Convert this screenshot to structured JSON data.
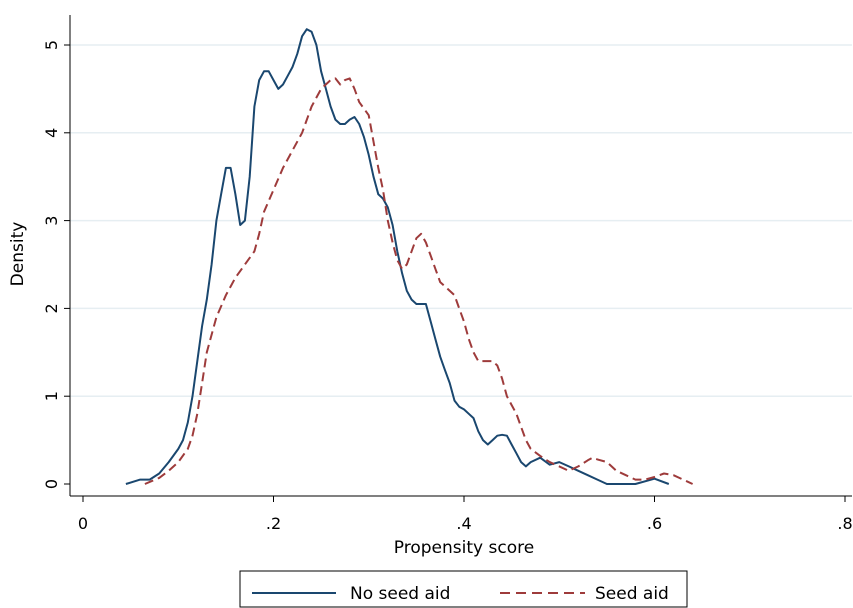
{
  "chart_data": {
    "type": "line",
    "xlabel": "Propensity score",
    "ylabel": "Density",
    "xlim": [
      0,
      0.8
    ],
    "ylim": [
      0,
      5.2
    ],
    "x_ticks": [
      0,
      0.2,
      0.4,
      0.6,
      0.8
    ],
    "x_tick_labels": [
      "0",
      ".2",
      ".4",
      ".6",
      ".8"
    ],
    "y_ticks": [
      0,
      1,
      2,
      3,
      4,
      5
    ],
    "y_tick_labels": [
      "0",
      "1",
      "2",
      "3",
      "4",
      "5"
    ],
    "grid": "horizontal",
    "legend_position": "bottom",
    "series": [
      {
        "name": "No seed aid",
        "color": "#1a476f",
        "dash": "solid",
        "points": [
          [
            0.045,
            0.0
          ],
          [
            0.06,
            0.05
          ],
          [
            0.07,
            0.05
          ],
          [
            0.08,
            0.12
          ],
          [
            0.09,
            0.25
          ],
          [
            0.1,
            0.4
          ],
          [
            0.105,
            0.5
          ],
          [
            0.11,
            0.7
          ],
          [
            0.115,
            1.0
          ],
          [
            0.12,
            1.4
          ],
          [
            0.125,
            1.8
          ],
          [
            0.13,
            2.1
          ],
          [
            0.135,
            2.5
          ],
          [
            0.14,
            3.0
          ],
          [
            0.145,
            3.3
          ],
          [
            0.15,
            3.6
          ],
          [
            0.155,
            3.6
          ],
          [
            0.16,
            3.3
          ],
          [
            0.165,
            2.95
          ],
          [
            0.17,
            3.0
          ],
          [
            0.175,
            3.5
          ],
          [
            0.18,
            4.3
          ],
          [
            0.185,
            4.6
          ],
          [
            0.19,
            4.7
          ],
          [
            0.195,
            4.7
          ],
          [
            0.2,
            4.6
          ],
          [
            0.205,
            4.5
          ],
          [
            0.21,
            4.55
          ],
          [
            0.215,
            4.65
          ],
          [
            0.22,
            4.75
          ],
          [
            0.225,
            4.9
          ],
          [
            0.23,
            5.1
          ],
          [
            0.235,
            5.18
          ],
          [
            0.24,
            5.15
          ],
          [
            0.245,
            5.0
          ],
          [
            0.25,
            4.7
          ],
          [
            0.255,
            4.5
          ],
          [
            0.26,
            4.3
          ],
          [
            0.265,
            4.15
          ],
          [
            0.27,
            4.1
          ],
          [
            0.275,
            4.1
          ],
          [
            0.28,
            4.15
          ],
          [
            0.285,
            4.18
          ],
          [
            0.29,
            4.1
          ],
          [
            0.295,
            3.95
          ],
          [
            0.3,
            3.75
          ],
          [
            0.305,
            3.5
          ],
          [
            0.31,
            3.3
          ],
          [
            0.315,
            3.25
          ],
          [
            0.32,
            3.15
          ],
          [
            0.325,
            2.95
          ],
          [
            0.33,
            2.65
          ],
          [
            0.335,
            2.4
          ],
          [
            0.34,
            2.2
          ],
          [
            0.345,
            2.1
          ],
          [
            0.35,
            2.05
          ],
          [
            0.36,
            2.05
          ],
          [
            0.365,
            1.85
          ],
          [
            0.37,
            1.65
          ],
          [
            0.375,
            1.45
          ],
          [
            0.38,
            1.3
          ],
          [
            0.385,
            1.15
          ],
          [
            0.39,
            0.95
          ],
          [
            0.395,
            0.88
          ],
          [
            0.4,
            0.85
          ],
          [
            0.405,
            0.8
          ],
          [
            0.41,
            0.75
          ],
          [
            0.415,
            0.6
          ],
          [
            0.42,
            0.5
          ],
          [
            0.425,
            0.45
          ],
          [
            0.43,
            0.5
          ],
          [
            0.435,
            0.55
          ],
          [
            0.44,
            0.56
          ],
          [
            0.445,
            0.55
          ],
          [
            0.45,
            0.45
          ],
          [
            0.455,
            0.35
          ],
          [
            0.46,
            0.25
          ],
          [
            0.465,
            0.2
          ],
          [
            0.47,
            0.25
          ],
          [
            0.48,
            0.3
          ],
          [
            0.49,
            0.22
          ],
          [
            0.5,
            0.25
          ],
          [
            0.51,
            0.2
          ],
          [
            0.52,
            0.15
          ],
          [
            0.53,
            0.1
          ],
          [
            0.54,
            0.05
          ],
          [
            0.55,
            0.0
          ],
          [
            0.58,
            0.0
          ],
          [
            0.6,
            0.06
          ],
          [
            0.615,
            0.0
          ]
        ]
      },
      {
        "name": "Seed aid",
        "color": "#9e3b3b",
        "dash": "dashed",
        "points": [
          [
            0.065,
            0.0
          ],
          [
            0.08,
            0.07
          ],
          [
            0.09,
            0.15
          ],
          [
            0.1,
            0.25
          ],
          [
            0.11,
            0.4
          ],
          [
            0.115,
            0.55
          ],
          [
            0.12,
            0.8
          ],
          [
            0.125,
            1.15
          ],
          [
            0.13,
            1.5
          ],
          [
            0.14,
            1.9
          ],
          [
            0.15,
            2.15
          ],
          [
            0.16,
            2.35
          ],
          [
            0.17,
            2.5
          ],
          [
            0.18,
            2.65
          ],
          [
            0.185,
            2.85
          ],
          [
            0.19,
            3.1
          ],
          [
            0.2,
            3.35
          ],
          [
            0.21,
            3.6
          ],
          [
            0.22,
            3.8
          ],
          [
            0.23,
            4.0
          ],
          [
            0.24,
            4.3
          ],
          [
            0.25,
            4.5
          ],
          [
            0.26,
            4.6
          ],
          [
            0.265,
            4.62
          ],
          [
            0.27,
            4.55
          ],
          [
            0.275,
            4.6
          ],
          [
            0.28,
            4.62
          ],
          [
            0.285,
            4.5
          ],
          [
            0.29,
            4.35
          ],
          [
            0.3,
            4.2
          ],
          [
            0.305,
            3.9
          ],
          [
            0.31,
            3.6
          ],
          [
            0.315,
            3.35
          ],
          [
            0.32,
            3.0
          ],
          [
            0.325,
            2.75
          ],
          [
            0.33,
            2.55
          ],
          [
            0.335,
            2.45
          ],
          [
            0.34,
            2.5
          ],
          [
            0.345,
            2.65
          ],
          [
            0.35,
            2.8
          ],
          [
            0.355,
            2.85
          ],
          [
            0.36,
            2.75
          ],
          [
            0.365,
            2.6
          ],
          [
            0.37,
            2.45
          ],
          [
            0.375,
            2.3
          ],
          [
            0.38,
            2.25
          ],
          [
            0.39,
            2.15
          ],
          [
            0.395,
            2.0
          ],
          [
            0.4,
            1.85
          ],
          [
            0.405,
            1.65
          ],
          [
            0.41,
            1.5
          ],
          [
            0.415,
            1.4
          ],
          [
            0.42,
            1.4
          ],
          [
            0.43,
            1.4
          ],
          [
            0.435,
            1.35
          ],
          [
            0.44,
            1.2
          ],
          [
            0.445,
            1.0
          ],
          [
            0.45,
            0.9
          ],
          [
            0.455,
            0.8
          ],
          [
            0.46,
            0.65
          ],
          [
            0.465,
            0.5
          ],
          [
            0.47,
            0.4
          ],
          [
            0.48,
            0.32
          ],
          [
            0.49,
            0.25
          ],
          [
            0.5,
            0.2
          ],
          [
            0.51,
            0.15
          ],
          [
            0.52,
            0.2
          ],
          [
            0.53,
            0.27
          ],
          [
            0.535,
            0.3
          ],
          [
            0.54,
            0.28
          ],
          [
            0.55,
            0.25
          ],
          [
            0.555,
            0.2
          ],
          [
            0.56,
            0.15
          ],
          [
            0.57,
            0.1
          ],
          [
            0.58,
            0.05
          ],
          [
            0.59,
            0.05
          ],
          [
            0.6,
            0.08
          ],
          [
            0.61,
            0.12
          ],
          [
            0.62,
            0.1
          ],
          [
            0.63,
            0.05
          ],
          [
            0.64,
            0.0
          ]
        ]
      }
    ]
  }
}
